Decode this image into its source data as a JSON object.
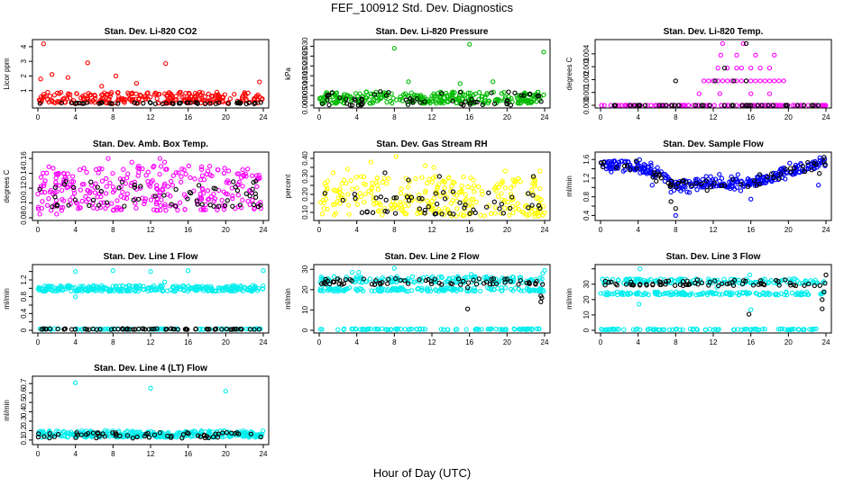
{
  "title": "FEF_100912  Std. Dev. Diagnostics",
  "xlabel": "Hour of Day (UTC)",
  "chart_data": [
    {
      "type": "scatter",
      "title": "Stan. Dev. Li-820 CO2",
      "ylabel": "Licor ppm",
      "xlim": [
        0,
        24
      ],
      "ylim": [
        0,
        4.3
      ],
      "xticks": [
        0,
        4,
        8,
        12,
        16,
        20,
        24
      ],
      "yticks": [
        1,
        2,
        3,
        4
      ],
      "ytick_labels": [
        "1",
        "2",
        "3",
        "4"
      ],
      "series": [
        {
          "color": "#ff0000",
          "band": [
            0.15,
            0.9
          ],
          "n": 260,
          "extra": [
            [
              0.6,
              4.2
            ],
            [
              5.3,
              2.9
            ],
            [
              13.6,
              2.85
            ],
            [
              8.3,
              2.0
            ],
            [
              3.2,
              1.9
            ],
            [
              1.5,
              2.1
            ],
            [
              23.6,
              1.6
            ],
            [
              10.5,
              1.5
            ],
            [
              0.3,
              1.8
            ],
            [
              6.8,
              1.3
            ]
          ]
        },
        {
          "color": "#000000",
          "band": [
            0.1,
            0.2
          ],
          "n": 50,
          "extra": []
        }
      ]
    },
    {
      "type": "scatter",
      "title": "Stan. Dev. Li-820 Pressure",
      "ylabel": "kPa",
      "xlim": [
        0,
        24
      ],
      "ylim": [
        0,
        0.032
      ],
      "xticks": [
        0,
        4,
        8,
        12,
        16,
        20,
        24
      ],
      "yticks": [
        0,
        0.005,
        0.01,
        0.015,
        0.02,
        0.025,
        0.03
      ],
      "ytick_labels": [
        "0.000",
        "0.005",
        "0.010",
        "0.015",
        "0.020",
        "0.025",
        "0.030"
      ],
      "series": [
        {
          "color": "#00bb00",
          "band": [
            0.001,
            0.007
          ],
          "n": 300,
          "extra": [
            [
              8.0,
              0.029
            ],
            [
              16.0,
              0.031
            ],
            [
              23.9,
              0.027
            ],
            [
              15.0,
              0.011
            ],
            [
              18.5,
              0.012
            ],
            [
              9.5,
              0.012
            ]
          ]
        },
        {
          "color": "#000000",
          "band": [
            0.0,
            0.007
          ],
          "n": 60,
          "extra": []
        }
      ]
    },
    {
      "type": "scatter",
      "title": "Stan. Dev. Li-820 Temp.",
      "ylabel": "degrees C",
      "xlim": [
        0,
        24
      ],
      "ylim": [
        0,
        0.0049
      ],
      "xticks": [
        0,
        4,
        8,
        12,
        16,
        20,
        24
      ],
      "yticks": [
        0,
        0.001,
        0.002,
        0.003,
        0.004
      ],
      "ytick_labels": [
        "0.000",
        "0.001",
        "0.002",
        "0.003",
        "0.004"
      ],
      "series": [
        {
          "color": "#ff00ff",
          "band": [
            0,
            0
          ],
          "n": 110,
          "extra": [
            [
              11,
              0.0019
            ],
            [
              11.5,
              0.0019
            ],
            [
              12,
              0.0019
            ],
            [
              12.5,
              0.0019
            ],
            [
              13,
              0.0019
            ],
            [
              13.5,
              0.0019
            ],
            [
              14,
              0.0019
            ],
            [
              14.5,
              0.0019
            ],
            [
              15,
              0.0019
            ],
            [
              15.5,
              0.0019
            ],
            [
              16,
              0.0019
            ],
            [
              16.5,
              0.0019
            ],
            [
              17,
              0.0019
            ],
            [
              17.5,
              0.0019
            ],
            [
              18,
              0.0019
            ],
            [
              18.5,
              0.0019
            ],
            [
              19,
              0.0019
            ],
            [
              19.5,
              0.0019
            ],
            [
              12.5,
              0.0029
            ],
            [
              13.5,
              0.0029
            ],
            [
              14.5,
              0.0029
            ],
            [
              15,
              0.0029
            ],
            [
              16,
              0.0029
            ],
            [
              17,
              0.0029
            ],
            [
              18,
              0.0029
            ],
            [
              12.8,
              0.0039
            ],
            [
              14.5,
              0.0039
            ],
            [
              16.5,
              0.0039
            ],
            [
              18.5,
              0.0039
            ],
            [
              13,
              0.0048
            ],
            [
              15.2,
              0.0048
            ],
            [
              10.5,
              0.0009
            ],
            [
              12.7,
              0.0009
            ],
            [
              16,
              0.0009
            ],
            [
              18,
              0.0009
            ]
          ]
        },
        {
          "color": "#000000",
          "band": [
            0,
            0
          ],
          "n": 40,
          "extra": [
            [
              8,
              0.0019
            ],
            [
              12.2,
              0.0019
            ],
            [
              13.2,
              0.0029
            ],
            [
              15.5,
              0.0019
            ],
            [
              15.5,
              0.0048
            ],
            [
              14.2,
              0.0019
            ]
          ]
        }
      ]
    },
    {
      "type": "scatter",
      "title": "Stan. Dev. Amb. Box Temp.",
      "ylabel": "degrees C",
      "xlim": [
        0,
        24
      ],
      "ylim": [
        0.08,
        0.165
      ],
      "xticks": [
        0,
        4,
        8,
        12,
        16,
        20,
        24
      ],
      "yticks": [
        0.08,
        0.1,
        0.12,
        0.14,
        0.16
      ],
      "ytick_labels": [
        "0.08",
        "0.10",
        "0.12",
        "0.14",
        "0.16"
      ],
      "series": [
        {
          "color": "#ff00ff",
          "band": [
            0.09,
            0.15
          ],
          "n": 300,
          "extra": [
            [
              7.5,
              0.16
            ],
            [
              13.0,
              0.16
            ],
            [
              13.5,
              0.155
            ],
            [
              10.0,
              0.155
            ],
            [
              0.2,
              0.085
            ],
            [
              2.0,
              0.085
            ]
          ]
        },
        {
          "color": "#000000",
          "band": [
            0.095,
            0.13
          ],
          "n": 60,
          "extra": []
        }
      ]
    },
    {
      "type": "scatter",
      "title": "Stan. Dev. Gas Stream RH",
      "ylabel": "percent",
      "xlim": [
        0,
        24
      ],
      "ylim": [
        0.07,
        0.42
      ],
      "xticks": [
        0,
        4,
        8,
        12,
        16,
        20,
        24
      ],
      "yticks": [
        0.1,
        0.15,
        0.2,
        0.25,
        0.3,
        0.35,
        0.4
      ],
      "ytick_labels": [
        "0.10",
        "",
        "0.20",
        "",
        "0.30",
        "",
        "0.40"
      ],
      "series": [
        {
          "color": "#ffff00",
          "band": [
            0.08,
            0.3
          ],
          "n": 280,
          "extra": [
            [
              8.2,
              0.41
            ],
            [
              5.5,
              0.38
            ],
            [
              11.3,
              0.36
            ],
            [
              12.2,
              0.35
            ],
            [
              3.0,
              0.34
            ],
            [
              23.5,
              0.33
            ],
            [
              19.8,
              0.33
            ],
            [
              1.5,
              0.32
            ]
          ]
        },
        {
          "color": "#000000",
          "band": [
            0.09,
            0.22
          ],
          "n": 55,
          "extra": [
            [
              7.0,
              0.32
            ],
            [
              12.8,
              0.3
            ],
            [
              22.8,
              0.3
            ],
            [
              9.5,
              0.28
            ]
          ]
        }
      ]
    },
    {
      "type": "scatter",
      "title": "Stan. Dev. Sample Flow",
      "ylabel": "ml/min",
      "xlim": [
        0,
        24
      ],
      "ylim": [
        0.35,
        1.7
      ],
      "xticks": [
        0,
        4,
        8,
        12,
        16,
        20,
        24
      ],
      "yticks": [
        0.4,
        0.6,
        0.8,
        1.0,
        1.2,
        1.4,
        1.6
      ],
      "ytick_labels": [
        "0.4",
        "",
        "0.8",
        "",
        "1.2",
        "",
        "1.6"
      ],
      "profile": [
        [
          0,
          1.5
        ],
        [
          4,
          1.45
        ],
        [
          6,
          1.3
        ],
        [
          8,
          1.05
        ],
        [
          12,
          1.1
        ],
        [
          16,
          1.1
        ],
        [
          20,
          1.35
        ],
        [
          24,
          1.55
        ]
      ],
      "spread": 0.1,
      "series": [
        {
          "color": "#0000ff",
          "band": null,
          "n": 320,
          "extra": [
            [
              8.0,
              0.4
            ],
            [
              16.0,
              0.75
            ],
            [
              5.5,
              1.05
            ],
            [
              23.2,
              1.05
            ],
            [
              7.5,
              0.9
            ]
          ]
        },
        {
          "color": "#000000",
          "band": null,
          "n": 60,
          "extra": [
            [
              7.5,
              0.7
            ],
            [
              8.0,
              0.55
            ],
            [
              23.8,
              1.65
            ],
            [
              23.3,
              1.3
            ]
          ]
        }
      ]
    },
    {
      "type": "scatter",
      "title": "Stan. Dev. Line 1 Flow",
      "ylabel": "ml/min",
      "xlim": [
        0,
        24
      ],
      "ylim": [
        0,
        1.5
      ],
      "xticks": [
        0,
        4,
        8,
        12,
        16,
        20,
        24
      ],
      "yticks": [
        0,
        0.2,
        0.4,
        0.6,
        0.8,
        1.0,
        1.2,
        1.4
      ],
      "ytick_labels": [
        "0",
        "",
        "0.4",
        "",
        "0.8",
        "",
        "1.2",
        ""
      ],
      "series": [
        {
          "color": "#00eeee",
          "band": [
            0.93,
            1.07
          ],
          "n": 300,
          "extra": [
            [
              4,
              1.4
            ],
            [
              8,
              1.42
            ],
            [
              12,
              1.4
            ],
            [
              16,
              1.42
            ],
            [
              24,
              1.42
            ],
            [
              4,
              0.8
            ],
            [
              13.5,
              1.15
            ]
          ]
        },
        {
          "color": "#00eeee",
          "band": [
            0.02,
            0.04
          ],
          "n": 80,
          "extra": []
        },
        {
          "color": "#000000",
          "band": [
            0.02,
            0.04
          ],
          "n": 70,
          "extra": []
        }
      ]
    },
    {
      "type": "scatter",
      "title": "Stan. Dev. Line 2 Flow",
      "ylabel": "ml/min",
      "xlim": [
        0,
        24
      ],
      "ylim": [
        0,
        31
      ],
      "xticks": [
        0,
        4,
        8,
        12,
        16,
        20,
        24
      ],
      "yticks": [
        0,
        10,
        20,
        30
      ],
      "ytick_labels": [
        "0",
        "10",
        "20",
        "30"
      ],
      "series": [
        {
          "color": "#00eeee",
          "band": [
            23.5,
            26.5
          ],
          "n": 150,
          "extra": [
            [
              3.5,
              28.5
            ],
            [
              4.2,
              28.5
            ],
            [
              8.0,
              30.5
            ],
            [
              16.2,
              27.5
            ],
            [
              24,
              29.5
            ],
            [
              23.8,
              28.0
            ]
          ]
        },
        {
          "color": "#00eeee",
          "band": [
            19.2,
            21.0
          ],
          "n": 150,
          "extra": []
        },
        {
          "color": "#00eeee",
          "band": [
            0.3,
            0.8
          ],
          "n": 90,
          "extra": []
        },
        {
          "color": "#000000",
          "band": [
            22.5,
            25.5
          ],
          "n": 70,
          "extra": [
            [
              15.8,
              10.5
            ],
            [
              23.6,
              14.0
            ],
            [
              23.6,
              17.0
            ],
            [
              23.7,
              16.0
            ],
            [
              15.8,
              21.0
            ]
          ]
        }
      ]
    },
    {
      "type": "scatter",
      "title": "Stan. Dev. Line 3 Flow",
      "ylabel": "ml/min",
      "xlim": [
        0,
        24
      ],
      "ylim": [
        0,
        41
      ],
      "xticks": [
        0,
        4,
        8,
        12,
        16,
        20,
        24
      ],
      "yticks": [
        0,
        10,
        20,
        30,
        40
      ],
      "ytick_labels": [
        "0",
        "10",
        "20",
        "30",
        ""
      ],
      "series": [
        {
          "color": "#00eeee",
          "band": [
            30.5,
            33.5
          ],
          "n": 150,
          "extra": [
            [
              4.2,
              40.0
            ],
            [
              15.9,
              36.0
            ],
            [
              4.1,
              17.0
            ],
            [
              12.4,
              28.0
            ],
            [
              16.0,
              13.5
            ]
          ]
        },
        {
          "color": "#00eeee",
          "band": [
            23.0,
            25.0
          ],
          "n": 150,
          "extra": []
        },
        {
          "color": "#00eeee",
          "band": [
            0.3,
            1.0
          ],
          "n": 90,
          "extra": []
        },
        {
          "color": "#000000",
          "band": [
            29.0,
            33.0
          ],
          "n": 70,
          "extra": [
            [
              15.8,
              10.5
            ],
            [
              23.6,
              14.0
            ],
            [
              23.6,
              20.0
            ],
            [
              23.8,
              25.0
            ],
            [
              24.0,
              36.0
            ]
          ]
        }
      ]
    },
    {
      "type": "scatter",
      "title": "Stan. Dev. Line 4 (LT) Flow",
      "ylabel": "ml/min",
      "xlim": [
        0,
        24
      ],
      "ylim": [
        0.08,
        0.75
      ],
      "xticks": [
        0,
        4,
        8,
        12,
        16,
        20,
        24
      ],
      "yticks": [
        0.1,
        0.2,
        0.3,
        0.4,
        0.5,
        0.6,
        0.7
      ],
      "ytick_labels": [
        "0.1",
        "0.2",
        "0.3",
        "0.4",
        "0.5",
        "0.6",
        "0.7"
      ],
      "series": [
        {
          "color": "#00eeee",
          "band": [
            0.13,
            0.2
          ],
          "n": 320,
          "extra": [
            [
              4,
              0.71
            ],
            [
              12,
              0.65
            ],
            [
              20,
              0.62
            ]
          ]
        },
        {
          "color": "#000000",
          "band": [
            0.12,
            0.18
          ],
          "n": 60,
          "extra": []
        }
      ]
    }
  ]
}
